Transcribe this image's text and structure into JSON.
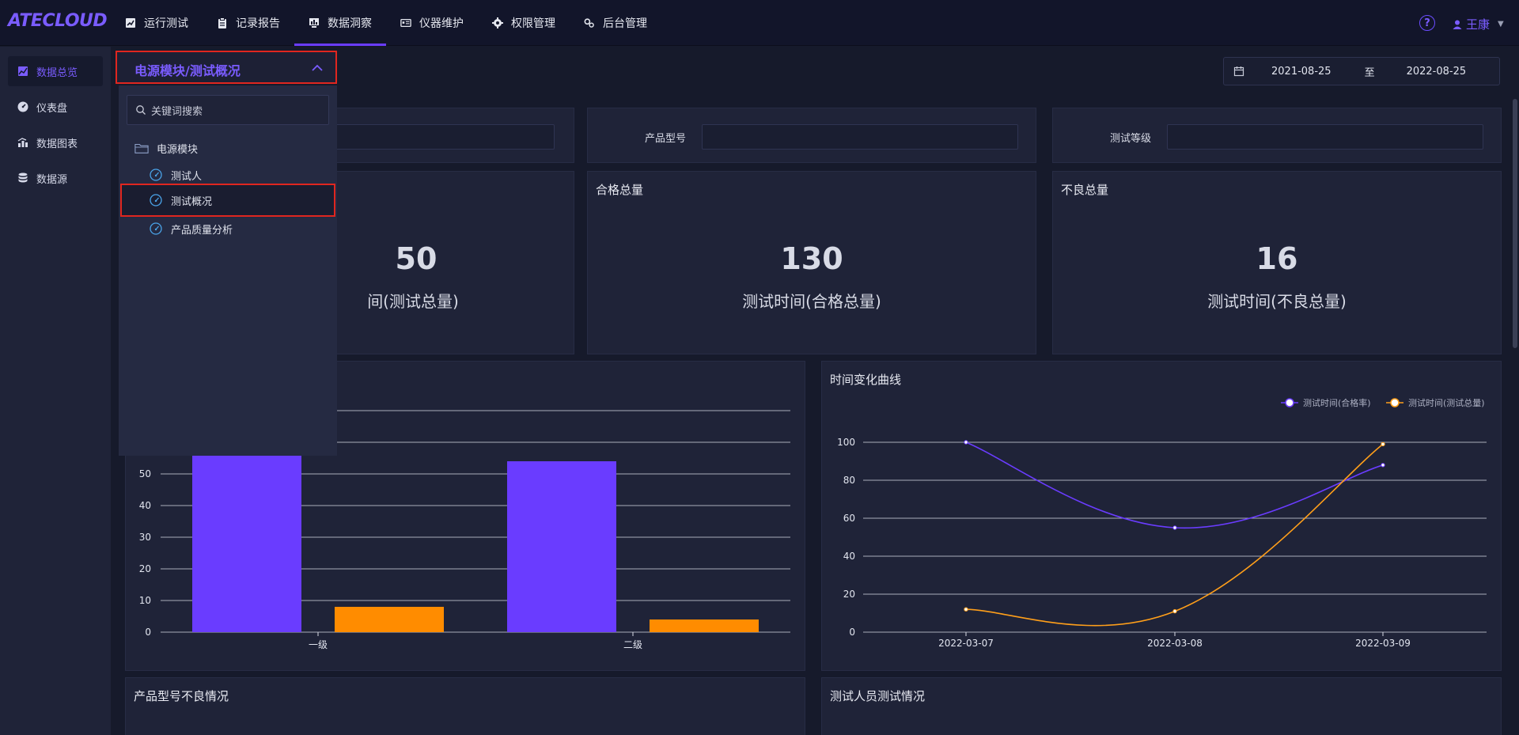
{
  "app": {
    "logo": "ATECLOUD"
  },
  "nav": [
    {
      "label": "运行测试",
      "icon": "chart-icon",
      "active": false
    },
    {
      "label": "记录报告",
      "icon": "clipboard-icon",
      "active": false
    },
    {
      "label": "数据洞察",
      "icon": "monitor-chart-icon",
      "active": true
    },
    {
      "label": "仪器维护",
      "icon": "instrument-icon",
      "active": false
    },
    {
      "label": "权限管理",
      "icon": "gear-group-icon",
      "active": false
    },
    {
      "label": "后台管理",
      "icon": "settings-icon",
      "active": false
    }
  ],
  "user": {
    "help": "?",
    "name": "王康"
  },
  "sidebar": [
    {
      "label": "数据总览",
      "icon": "chart-area-icon",
      "active": true
    },
    {
      "label": "仪表盘",
      "icon": "gauge-icon",
      "active": false
    },
    {
      "label": "数据图表",
      "icon": "bar-chart-icon",
      "active": false
    },
    {
      "label": "数据源",
      "icon": "database-icon",
      "active": false
    }
  ],
  "date_range": {
    "start": "2021-08-25",
    "separator": "至",
    "end": "2022-08-25"
  },
  "filters": {
    "product_model_label": "产品型号",
    "test_level_label": "测试等级"
  },
  "stats": [
    {
      "title": "",
      "value": "50",
      "subtitle": "间(测试总量)"
    },
    {
      "title": "合格总量",
      "value": "130",
      "subtitle": "测试时间(合格总量)"
    },
    {
      "title": "不良总量",
      "value": "16",
      "subtitle": "测试时间(不良总量)"
    }
  ],
  "dropdown": {
    "selected_path": "电源模块/测试概况",
    "search_placeholder": "关键词搜索",
    "tree": [
      {
        "label": "电源模块",
        "icon": "folder-icon",
        "level": 0
      },
      {
        "label": "测试人",
        "icon": "gauge-icon",
        "level": 1
      },
      {
        "label": "测试概况",
        "icon": "gauge-icon",
        "level": 1,
        "selected": true
      },
      {
        "label": "产品质量分析",
        "icon": "gauge-icon",
        "level": 1
      }
    ]
  },
  "bottom_titles": {
    "left": "产品型号不良情况",
    "right": "测试人员测试情况"
  },
  "colors": {
    "accent": "#6a3cff",
    "orange": "#ff8c00",
    "bg": "#161a2b",
    "panel": "#1f2338"
  },
  "chart_data": [
    {
      "type": "bar",
      "title": "",
      "categories": [
        "一级",
        "二级"
      ],
      "series": [
        {
          "values": [
            56,
            54
          ],
          "color": "#6a3cff"
        },
        {
          "values": [
            8,
            4
          ],
          "color": "#ff8c00"
        }
      ],
      "y_ticks": [
        0,
        10,
        20,
        30,
        40,
        50
      ],
      "ylim": [
        0,
        70
      ],
      "grid": true
    },
    {
      "type": "line",
      "title": "时间变化曲线",
      "x": [
        "2022-03-07",
        "2022-03-08",
        "2022-03-09"
      ],
      "series": [
        {
          "name": "测试时间(合格率)",
          "values": [
            100,
            55,
            88
          ],
          "color": "#6a3cff"
        },
        {
          "name": "测试时间(测试总量)",
          "values": [
            12,
            11,
            99
          ],
          "color": "#ff9f1a"
        }
      ],
      "y_ticks": [
        0,
        20,
        40,
        60,
        80,
        100
      ],
      "ylim": [
        0,
        100
      ],
      "legend": "top-right",
      "grid": true
    }
  ]
}
